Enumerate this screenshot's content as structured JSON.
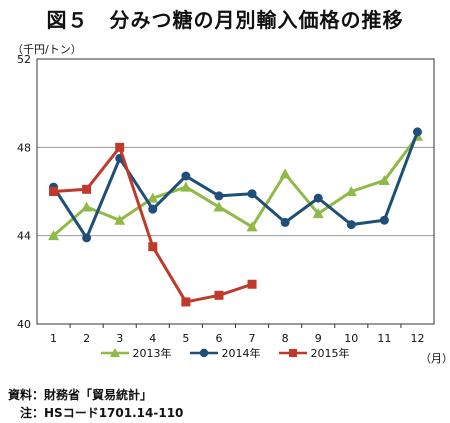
{
  "figure": {
    "title": "図５　分みつ糖の月別輸入価格の推移",
    "notes": [
      {
        "label": "資料：",
        "text": "財務省「貿易統計」"
      },
      {
        "label": "注：",
        "text": "HSコード1701.14-110"
      }
    ]
  },
  "chart_data": {
    "type": "line",
    "title": "図５　分みつ糖の月別輸入価格の推移",
    "ylabel": "（千円/トン）",
    "xlabel": "（月）",
    "categories": [
      "1",
      "2",
      "3",
      "4",
      "5",
      "6",
      "7",
      "8",
      "9",
      "10",
      "11",
      "12"
    ],
    "ylim": [
      40,
      52
    ],
    "yticks": [
      40,
      44,
      48,
      52
    ],
    "grid": "horizontal",
    "legend_position": "bottom",
    "series": [
      {
        "name": "2013年",
        "color": "#8fba45",
        "marker": "triangle",
        "values": [
          44.0,
          45.3,
          44.7,
          45.7,
          46.2,
          45.3,
          44.4,
          46.8,
          45.0,
          46.0,
          46.5,
          48.5
        ]
      },
      {
        "name": "2014年",
        "color": "#1f4e79",
        "marker": "circle",
        "values": [
          46.2,
          43.9,
          47.5,
          45.2,
          46.7,
          45.8,
          45.9,
          44.6,
          45.7,
          44.5,
          44.7,
          48.7
        ]
      },
      {
        "name": "2015年",
        "color": "#c0392b",
        "marker": "square",
        "values": [
          46.0,
          46.1,
          48.0,
          43.5,
          41.0,
          41.3,
          41.8,
          null,
          null,
          null,
          null,
          null
        ]
      }
    ]
  }
}
